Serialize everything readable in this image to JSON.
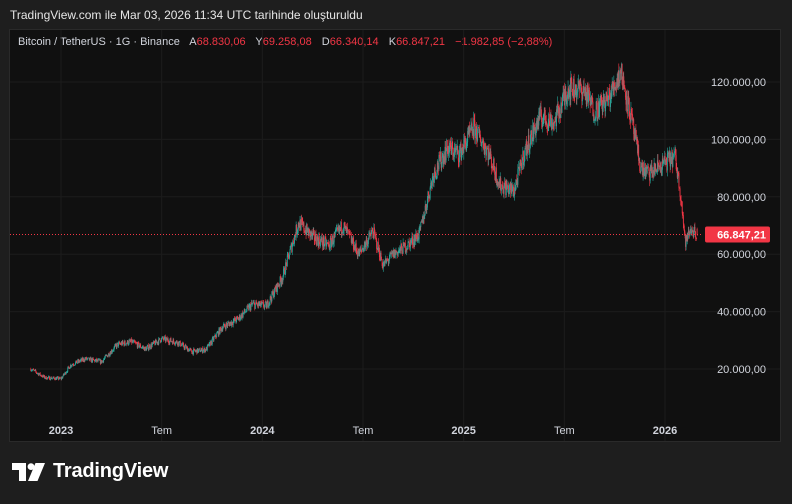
{
  "caption": "TradingView.com ile Mar 03, 2026 11:34 UTC tarihinde oluşturuldu",
  "legend": {
    "symbol": "Bitcoin / TetherUS · 1G · Binance",
    "open_label": "A",
    "open": "68.830,06",
    "high_label": "Y",
    "high": "69.258,08",
    "low_label": "D",
    "low": "66.340,14",
    "close_label": "K",
    "close": "66.847,21",
    "change": "−1.982,85 (−2,88%)"
  },
  "brand": "TradingView",
  "colors": {
    "up": "#26a69a",
    "down": "#f23645",
    "price_line": "#f23645",
    "background": "#101010"
  },
  "chart_data": {
    "type": "candlestick",
    "symbol": "Bitcoin / TetherUS",
    "interval": "1G",
    "exchange": "Binance",
    "ylim": [
      0,
      130000
    ],
    "y_ticks": [
      20000,
      40000,
      60000,
      80000,
      100000,
      120000
    ],
    "y_tick_labels": [
      "20.000,00",
      "40.000,00",
      "60.000,00",
      "80.000,00",
      "100.000,00",
      "120.000,00"
    ],
    "x_ticks": [
      "2023",
      "Tem",
      "2024",
      "Tem",
      "2025",
      "Tem",
      "2026"
    ],
    "x_tick_bold": [
      true,
      false,
      true,
      false,
      true,
      false,
      true
    ],
    "last_price": 66847.21,
    "last_price_label": "66.847,21",
    "grid": true,
    "series": [
      {
        "values": [
          [
            2022.85,
            20000
          ],
          [
            2022.92,
            17000
          ],
          [
            2023.0,
            16600
          ],
          [
            2023.05,
            21500
          ],
          [
            2023.12,
            23500
          ],
          [
            2023.2,
            22500
          ],
          [
            2023.28,
            28500
          ],
          [
            2023.35,
            29500
          ],
          [
            2023.42,
            27000
          ],
          [
            2023.5,
            30500
          ],
          [
            2023.58,
            29300
          ],
          [
            2023.65,
            26000
          ],
          [
            2023.72,
            26800
          ],
          [
            2023.8,
            34500
          ],
          [
            2023.88,
            37500
          ],
          [
            2023.95,
            42500
          ],
          [
            2024.02,
            42000
          ],
          [
            2024.1,
            52000
          ],
          [
            2024.18,
            71000
          ],
          [
            2024.25,
            66000
          ],
          [
            2024.33,
            63000
          ],
          [
            2024.4,
            70000
          ],
          [
            2024.48,
            60000
          ],
          [
            2024.55,
            68000
          ],
          [
            2024.6,
            56000
          ],
          [
            2024.65,
            60000
          ],
          [
            2024.72,
            63000
          ],
          [
            2024.78,
            67000
          ],
          [
            2024.85,
            88000
          ],
          [
            2024.92,
            97000
          ],
          [
            2024.98,
            95000
          ],
          [
            2025.05,
            104000
          ],
          [
            2025.12,
            96000
          ],
          [
            2025.18,
            84000
          ],
          [
            2025.25,
            82000
          ],
          [
            2025.3,
            95000
          ],
          [
            2025.38,
            108000
          ],
          [
            2025.45,
            106000
          ],
          [
            2025.52,
            118000
          ],
          [
            2025.6,
            117000
          ],
          [
            2025.65,
            110000
          ],
          [
            2025.72,
            114000
          ],
          [
            2025.78,
            124000
          ],
          [
            2025.83,
            108000
          ],
          [
            2025.88,
            90000
          ],
          [
            2025.92,
            88000
          ],
          [
            2025.98,
            91000
          ],
          [
            2026.05,
            94000
          ],
          [
            2026.08,
            80000
          ],
          [
            2026.1,
            64000
          ],
          [
            2026.13,
            68800
          ],
          [
            2026.16,
            66847
          ]
        ]
      }
    ]
  }
}
